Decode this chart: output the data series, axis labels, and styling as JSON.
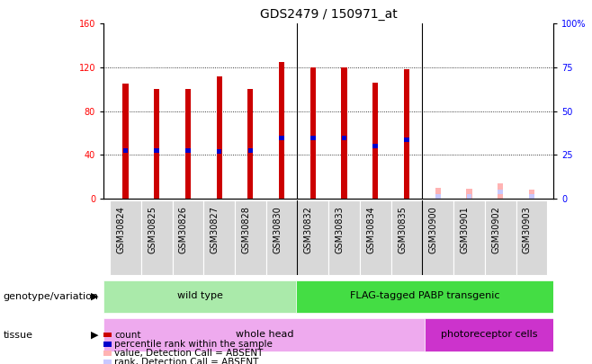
{
  "title": "GDS2479 / 150971_at",
  "samples": [
    "GSM30824",
    "GSM30825",
    "GSM30826",
    "GSM30827",
    "GSM30828",
    "GSM30830",
    "GSM30832",
    "GSM30833",
    "GSM30834",
    "GSM30835",
    "GSM30900",
    "GSM30901",
    "GSM30902",
    "GSM30903"
  ],
  "count_values": [
    105,
    100,
    100,
    112,
    100,
    125,
    120,
    120,
    106,
    118,
    10,
    9,
    14,
    8
  ],
  "percentile_values": [
    44,
    44,
    44,
    43,
    44,
    55,
    55,
    55,
    48,
    54,
    2,
    2,
    6,
    2
  ],
  "absent": [
    false,
    false,
    false,
    false,
    false,
    false,
    false,
    false,
    false,
    false,
    true,
    true,
    true,
    true
  ],
  "ylim_left": [
    0,
    160
  ],
  "ylim_right": [
    0,
    100
  ],
  "yticks_left": [
    0,
    40,
    80,
    120,
    160
  ],
  "yticks_right": [
    0,
    25,
    50,
    75,
    100
  ],
  "yticklabels_right": [
    "0",
    "25",
    "50",
    "75",
    "100%"
  ],
  "color_count_present": "#cc0000",
  "color_count_absent": "#ffb3b3",
  "color_percentile_present": "#0000cc",
  "color_percentile_absent": "#c8c8ff",
  "bar_width": 0.18,
  "background_color": "#ffffff",
  "plot_bg_color": "#ffffff",
  "xtick_bg_color": "#d8d8d8",
  "genotype_groups": [
    {
      "label": "wild type",
      "start": 0,
      "end": 5,
      "color": "#aaeaaa"
    },
    {
      "label": "FLAG-tagged PABP transgenic",
      "start": 6,
      "end": 13,
      "color": "#44dd44"
    }
  ],
  "tissue_groups": [
    {
      "label": "whole head",
      "start": 0,
      "end": 9,
      "color": "#eeaaee"
    },
    {
      "label": "photoreceptor cells",
      "start": 10,
      "end": 13,
      "color": "#cc33cc"
    }
  ],
  "legend_items": [
    {
      "label": "count",
      "color": "#cc0000"
    },
    {
      "label": "percentile rank within the sample",
      "color": "#0000cc"
    },
    {
      "label": "value, Detection Call = ABSENT",
      "color": "#ffb3b3"
    },
    {
      "label": "rank, Detection Call = ABSENT",
      "color": "#c8c8ff"
    }
  ],
  "title_fontsize": 10,
  "tick_fontsize": 7,
  "label_fontsize": 8,
  "group_fontsize": 8,
  "legend_fontsize": 7.5
}
